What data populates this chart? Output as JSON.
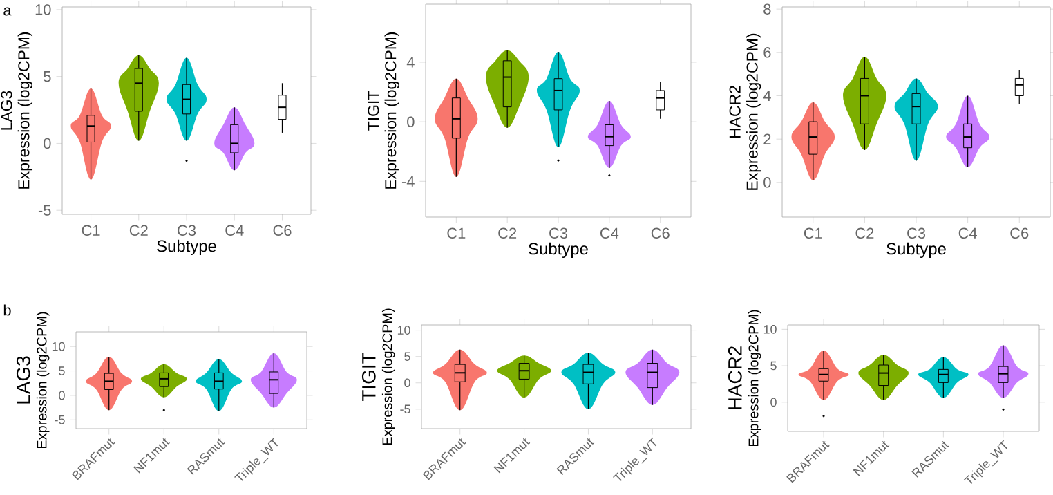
{
  "chart_data": [
    {
      "type": "box",
      "title": "LAG3",
      "ylabel": "Expression (log2CPM)",
      "xlabel": "Subtype",
      "annotations": [
        "a"
      ],
      "categories": [
        "C1",
        "C2",
        "C3",
        "C4",
        "C6"
      ],
      "colors": [
        "#f8766d",
        "#7cae00",
        "#00bfc4",
        "#c77cff",
        null
      ],
      "ylim": [
        -5.3,
        10.2
      ],
      "yticks": [
        -5,
        0,
        5,
        10
      ],
      "boxes": [
        {
          "low": -2.7,
          "q1": 0.1,
          "median": 1.3,
          "q3": 2.1,
          "high": 4.1
        },
        {
          "low": 0.2,
          "q1": 2.4,
          "median": 4.5,
          "q3": 5.6,
          "high": 6.6
        },
        {
          "low": 0.2,
          "q1": 2.2,
          "median": 3.3,
          "q3": 4.4,
          "high": 6.4,
          "outliers": [
            -1.3
          ]
        },
        {
          "low": -2.0,
          "q1": -0.7,
          "median": 0.0,
          "q3": 1.4,
          "high": 2.7
        },
        {
          "low": 0.8,
          "q1": 1.8,
          "median": 2.7,
          "q3": 3.6,
          "high": 4.5
        }
      ]
    },
    {
      "type": "box",
      "title": "TIGIT",
      "ylabel": "Expression (log2CPM)",
      "xlabel": "Subtype",
      "categories": [
        "C1",
        "C2",
        "C3",
        "C4",
        "C6"
      ],
      "colors": [
        "#f8766d",
        "#7cae00",
        "#00bfc4",
        "#c77cff",
        null
      ],
      "ylim": [
        -6.4,
        7.9
      ],
      "yticks": [
        -4,
        0,
        4
      ],
      "boxes": [
        {
          "low": -3.7,
          "q1": -1.1,
          "median": 0.2,
          "q3": 1.6,
          "high": 2.9
        },
        {
          "low": -0.4,
          "q1": 1.0,
          "median": 3.0,
          "q3": 4.1,
          "high": 4.8
        },
        {
          "low": -1.7,
          "q1": 0.8,
          "median": 2.1,
          "q3": 2.9,
          "high": 4.7,
          "outliers": [
            -2.6
          ]
        },
        {
          "low": -3.1,
          "q1": -1.6,
          "median": -1.0,
          "q3": -0.2,
          "high": 1.4,
          "outliers": [
            -3.6
          ]
        },
        {
          "low": 0.2,
          "q1": 0.8,
          "median": 1.6,
          "q3": 2.1,
          "high": 2.7
        }
      ]
    },
    {
      "type": "box",
      "title": "HACR2",
      "ylabel": "Expression (log2CPM)",
      "xlabel": "Subtype",
      "categories": [
        "C1",
        "C2",
        "C3",
        "C4",
        "C6"
      ],
      "colors": [
        "#f8766d",
        "#7cae00",
        "#00bfc4",
        "#c77cff",
        null
      ],
      "ylim": [
        -1.6,
        8.1
      ],
      "yticks": [
        0,
        2,
        4,
        6,
        8
      ],
      "boxes": [
        {
          "low": 0.1,
          "q1": 1.3,
          "median": 2.1,
          "q3": 2.8,
          "high": 3.7
        },
        {
          "low": 1.5,
          "q1": 2.7,
          "median": 4.0,
          "q3": 4.8,
          "high": 5.8
        },
        {
          "low": 1.0,
          "q1": 2.7,
          "median": 3.5,
          "q3": 4.1,
          "high": 4.8
        },
        {
          "low": 0.7,
          "q1": 1.6,
          "median": 2.1,
          "q3": 2.7,
          "high": 4.0
        },
        {
          "low": 3.6,
          "q1": 4.0,
          "median": 4.5,
          "q3": 4.8,
          "high": 5.2
        }
      ]
    },
    {
      "type": "box",
      "title": "LAG3",
      "ylabel": "Expression (log2CPM)",
      "annotations": [
        "b"
      ],
      "categories": [
        "BRAFmut",
        "NF1mut",
        "RASmut",
        "Triple_WT"
      ],
      "colors": [
        "#f8766d",
        "#7cae00",
        "#00bfc4",
        "#c77cff"
      ],
      "ylim": [
        -6.8,
        13.0
      ],
      "yticks": [
        -5,
        0,
        5,
        10
      ],
      "boxes": [
        {
          "low": -3.0,
          "q1": 1.2,
          "median": 2.9,
          "q3": 4.5,
          "high": 7.9
        },
        {
          "low": -0.4,
          "q1": 1.8,
          "median": 3.4,
          "q3": 4.6,
          "high": 6.4,
          "outliers": [
            -3.0
          ]
        },
        {
          "low": -3.2,
          "q1": 1.3,
          "median": 2.9,
          "q3": 4.6,
          "high": 7.4
        },
        {
          "low": -2.5,
          "q1": 0.4,
          "median": 3.2,
          "q3": 4.8,
          "high": 8.6
        }
      ]
    },
    {
      "type": "box",
      "title": "TIGIT",
      "ylabel": "Expression (log2CPM)",
      "categories": [
        "BRAFmut",
        "NF1mut",
        "RASmut",
        "Triple_WT"
      ],
      "colors": [
        "#f8766d",
        "#7cae00",
        "#00bfc4",
        "#c77cff"
      ],
      "ylim": [
        -8.7,
        11.0
      ],
      "yticks": [
        -5,
        0,
        5,
        10
      ],
      "boxes": [
        {
          "low": -5.2,
          "q1": 0.2,
          "median": 1.9,
          "q3": 3.5,
          "high": 6.3
        },
        {
          "low": -2.8,
          "q1": 0.7,
          "median": 2.3,
          "q3": 3.7,
          "high": 5.2
        },
        {
          "low": -5.0,
          "q1": -0.2,
          "median": 2.0,
          "q3": 3.5,
          "high": 5.7
        },
        {
          "low": -4.2,
          "q1": -0.9,
          "median": 2.0,
          "q3": 3.7,
          "high": 6.3
        }
      ]
    },
    {
      "type": "box",
      "title": "HACR2",
      "ylabel": "Expression (log2CPM)",
      "categories": [
        "BRAFmut",
        "NF1mut",
        "RASmut",
        "Triple_WT"
      ],
      "colors": [
        "#f8766d",
        "#7cae00",
        "#00bfc4",
        "#c77cff"
      ],
      "ylim": [
        -4.0,
        10.6
      ],
      "yticks": [
        0,
        5,
        10
      ],
      "boxes": [
        {
          "low": 0.3,
          "q1": 2.9,
          "median": 3.8,
          "q3": 4.6,
          "high": 7.1,
          "outliers": [
            -1.9
          ]
        },
        {
          "low": 0.3,
          "q1": 2.3,
          "median": 4.0,
          "q3": 5.1,
          "high": 6.5
        },
        {
          "low": 0.6,
          "q1": 2.7,
          "median": 3.8,
          "q3": 4.5,
          "high": 6.2
        },
        {
          "low": 0.6,
          "q1": 2.7,
          "median": 3.9,
          "q3": 4.9,
          "high": 7.8,
          "outliers": [
            -1.0
          ]
        }
      ]
    }
  ]
}
